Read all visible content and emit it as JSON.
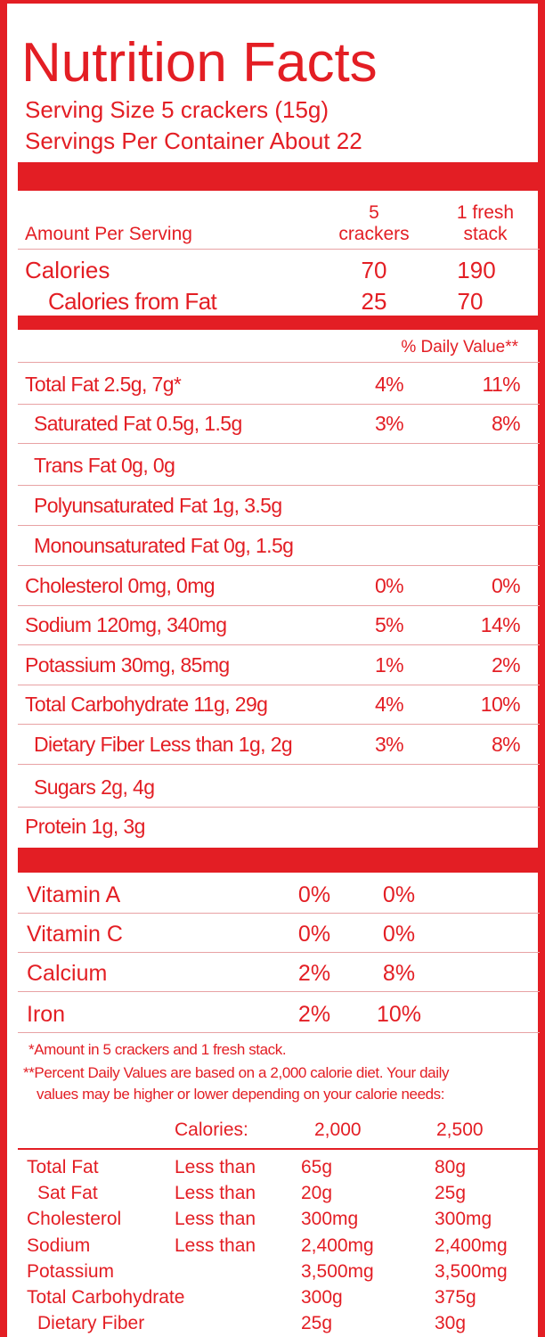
{
  "title": "Nutrition Facts",
  "serving_size": "Serving Size 5 crackers (15g)",
  "servings_per_container": "Servings Per Container About 22",
  "amount_per_serving": "Amount Per Serving",
  "column_headers": {
    "col1_line1": "5",
    "col1_line2": "crackers",
    "col2_line1": "1 fresh",
    "col2_line2": "stack"
  },
  "calories": {
    "label": "Calories",
    "col1": "70",
    "col2": "190"
  },
  "calories_from_fat": {
    "label": "Calories from Fat",
    "col1": "25",
    "col2": "70"
  },
  "daily_value_header": "% Daily Value**",
  "nutrients": [
    {
      "label": "Total Fat 2.5g, 7g*",
      "col1": "4%",
      "col2": "11%"
    },
    {
      "label": "Saturated Fat 0.5g, 1.5g",
      "col1": "3%",
      "col2": "8%"
    },
    {
      "label": "Trans Fat 0g, 0g",
      "col1": "",
      "col2": ""
    },
    {
      "label": "Polyunsaturated Fat 1g, 3.5g",
      "col1": "",
      "col2": ""
    },
    {
      "label": "Monounsaturated Fat 0g, 1.5g",
      "col1": "",
      "col2": ""
    },
    {
      "label": "Cholesterol 0mg, 0mg",
      "col1": "0%",
      "col2": "0%"
    },
    {
      "label": "Sodium 120mg, 340mg",
      "col1": "5%",
      "col2": "14%"
    },
    {
      "label": "Potassium 30mg, 85mg",
      "col1": "1%",
      "col2": "2%"
    },
    {
      "label": "Total Carbohydrate 11g, 29g",
      "col1": "4%",
      "col2": "10%"
    },
    {
      "label": "Dietary Fiber Less than 1g, 2g",
      "col1": "3%",
      "col2": "8%"
    },
    {
      "label": "Sugars 2g, 4g",
      "col1": "",
      "col2": ""
    },
    {
      "label": "Protein 1g, 3g",
      "col1": "",
      "col2": ""
    }
  ],
  "vitamins": [
    {
      "label": "Vitamin A",
      "col1": "0%",
      "col2": "0%"
    },
    {
      "label": "Vitamin C",
      "col1": "0%",
      "col2": "0%"
    },
    {
      "label": "Calcium",
      "col1": "2%",
      "col2": "8%"
    },
    {
      "label": "Iron",
      "col1": "2%",
      "col2": "10%"
    }
  ],
  "footnote_amount": "*Amount in 5 crackers and 1 fresh stack.",
  "footnote_dv_line1": "**Percent Daily Values are based on a 2,000 calorie diet. Your daily",
  "footnote_dv_line2": "values may be higher or lower depending on your calorie needs:",
  "dv_table": {
    "calories_label": "Calories:",
    "cal_2000": "2,000",
    "cal_2500": "2,500",
    "rows": [
      {
        "label": "Total Fat",
        "qualifier": "Less than",
        "v2000": "65g",
        "v2500": "80g"
      },
      {
        "label": "Sat Fat",
        "qualifier": "Less than",
        "v2000": "20g",
        "v2500": "25g"
      },
      {
        "label": "Cholesterol",
        "qualifier": "Less than",
        "v2000": "300mg",
        "v2500": "300mg"
      },
      {
        "label": "Sodium",
        "qualifier": "Less than",
        "v2000": "2,400mg",
        "v2500": "2,400mg"
      },
      {
        "label": "Potassium",
        "qualifier": "",
        "v2000": "3,500mg",
        "v2500": "3,500mg"
      },
      {
        "label": "Total Carbohydrate",
        "qualifier": "",
        "v2000": "300g",
        "v2500": "375g"
      },
      {
        "label": "Dietary Fiber",
        "qualifier": "",
        "v2000": "25g",
        "v2500": "30g"
      }
    ]
  },
  "colors": {
    "label_red": "#e31e24",
    "background": "#ffffff"
  }
}
